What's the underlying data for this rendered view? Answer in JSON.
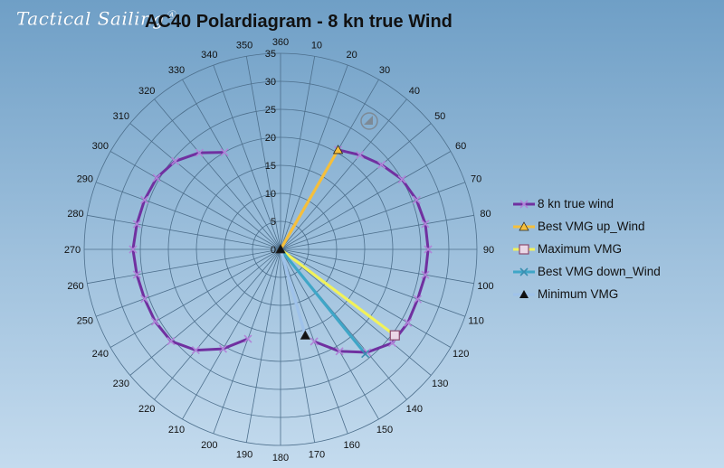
{
  "brand": {
    "logo_text": "Tactical Sailing"
  },
  "chart_data": {
    "type": "polar",
    "title": "AC40 Polardiagram - 8 kn true Wind",
    "radial_axis": {
      "min": 0,
      "max": 35,
      "step": 5,
      "ticks": [
        "0",
        "5",
        "10",
        "15",
        "20",
        "25",
        "30",
        "35"
      ]
    },
    "angular_axis": {
      "step_deg": 10,
      "ticks": [
        "360",
        "10",
        "20",
        "30",
        "40",
        "50",
        "60",
        "70",
        "80",
        "90",
        "100",
        "110",
        "120",
        "130",
        "140",
        "150",
        "160",
        "170",
        "180",
        "190",
        "200",
        "210",
        "220",
        "230",
        "240",
        "250",
        "260",
        "270",
        "280",
        "290",
        "300",
        "310",
        "320",
        "330",
        "340",
        "350"
      ]
    },
    "grid": true,
    "legend_position": "right",
    "series": [
      {
        "name": "8 kn true wind",
        "color": "#7030a0",
        "marker": "x",
        "style": "line",
        "segments": [
          [
            [
              30,
              20.5
            ],
            [
              40,
              22
            ],
            [
              50,
              23.5
            ],
            [
              60,
              25
            ],
            [
              70,
              25.8
            ],
            [
              80,
              26.2
            ],
            [
              90,
              26.3
            ],
            [
              100,
              26.2
            ],
            [
              110,
              26
            ],
            [
              120,
              26.2
            ],
            [
              130,
              26
            ],
            [
              140,
              24
            ],
            [
              150,
              21
            ],
            [
              160,
              17.5
            ]
          ],
          [
            [
              200,
              17
            ],
            [
              210,
              20.5
            ],
            [
              220,
              23.5
            ],
            [
              230,
              25.5
            ],
            [
              240,
              25.8
            ],
            [
              250,
              25.8
            ],
            [
              260,
              26
            ],
            [
              270,
              26.3
            ],
            [
              280,
              26
            ],
            [
              290,
              25.8
            ],
            [
              300,
              25.5
            ],
            [
              310,
              24.5
            ],
            [
              320,
              22.5
            ],
            [
              330,
              20
            ]
          ]
        ]
      },
      {
        "name": "Best VMG up_Wind",
        "color": "#f5bf3c",
        "marker": "triangle",
        "style": "vector",
        "points": [
          [
            30,
            20.5
          ]
        ]
      },
      {
        "name": "Maximum VMG",
        "color": "#f1f25a",
        "marker": "square",
        "style": "vector",
        "points": [
          [
            127,
            25.5
          ]
        ]
      },
      {
        "name": "Best VMG down_Wind",
        "color": "#3fa6c7",
        "marker": "x",
        "style": "vector",
        "points": [
          [
            141,
            24
          ]
        ]
      },
      {
        "name": "Minimum VMG",
        "color": "#9fc2ea",
        "marker": "triangle-black",
        "style": "vector",
        "points": [
          [
            164,
            16
          ]
        ]
      }
    ]
  }
}
